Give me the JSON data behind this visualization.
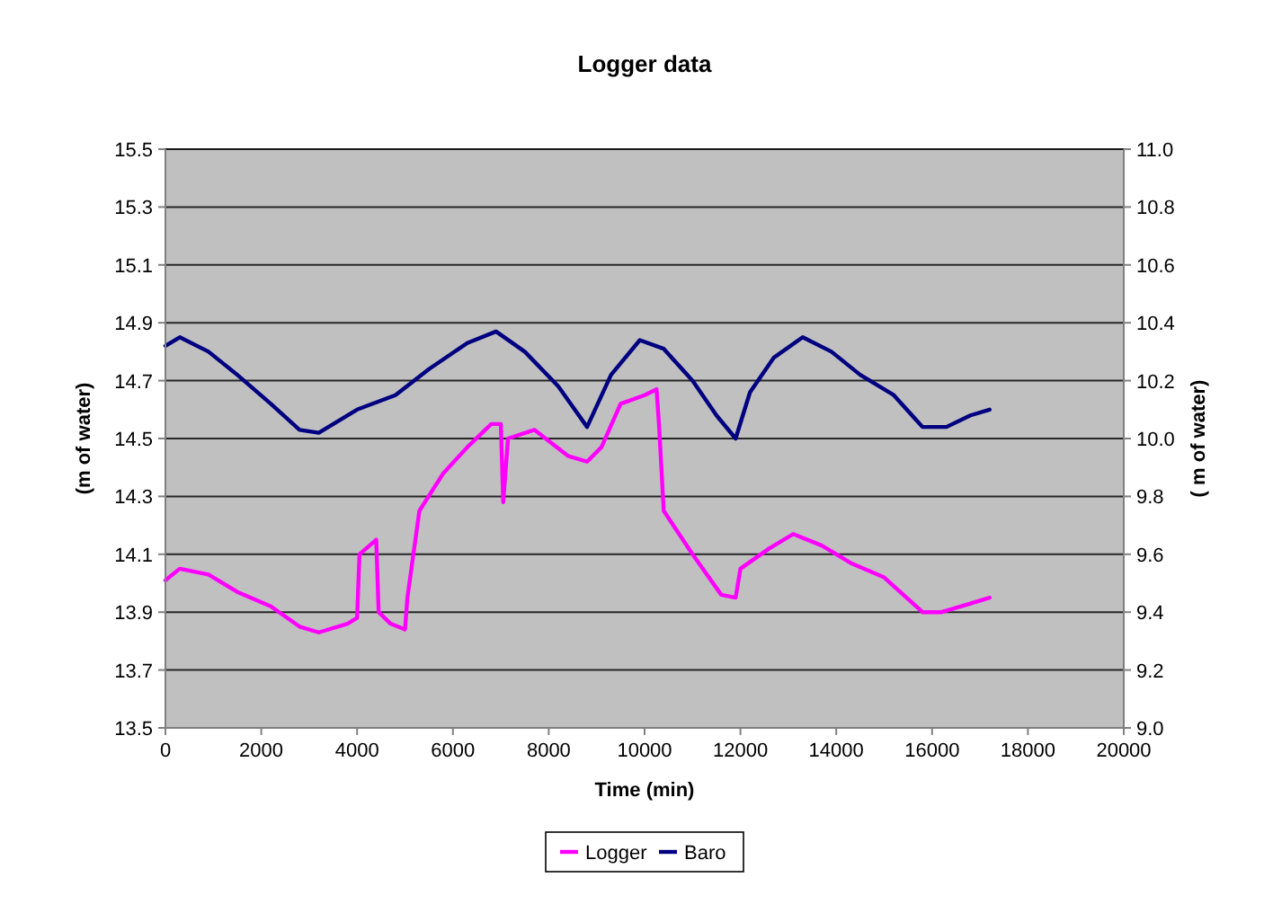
{
  "chart_data": {
    "type": "line",
    "title": "Logger data",
    "xlabel": "Time (min)",
    "ylabel": "(m of water)",
    "y2label": "( m of water)",
    "xlim": [
      0,
      20000
    ],
    "xticks": [
      0,
      2000,
      4000,
      6000,
      8000,
      10000,
      12000,
      14000,
      16000,
      18000,
      20000
    ],
    "ylim": [
      13.5,
      15.5
    ],
    "yticks": [
      13.5,
      13.7,
      13.9,
      14.1,
      14.3,
      14.5,
      14.7,
      14.9,
      15.1,
      15.3,
      15.5
    ],
    "y2lim": [
      9.0,
      11.0
    ],
    "y2ticks": [
      {
        "value": 9.0,
        "label": "9.0"
      },
      9.2,
      9.4,
      9.6,
      9.8,
      {
        "value": 10.0,
        "label": "10.0"
      },
      10.2,
      10.4,
      10.6,
      10.8,
      {
        "value": 11.0,
        "label": "11.0"
      }
    ],
    "grid": "y",
    "legend": "bottom",
    "marker": "none",
    "line_style": "solid",
    "series": [
      {
        "name": "Logger",
        "color": "#ff00ff",
        "x": [
          0,
          300,
          900,
          1500,
          2200,
          2800,
          3200,
          3800,
          4000,
          4050,
          4400,
          4450,
          4700,
          5000,
          5050,
          5300,
          5800,
          6300,
          6800,
          7000,
          7050,
          7150,
          7700,
          8400,
          8800,
          9100,
          9500,
          10000,
          10250,
          10300,
          10400,
          11000,
          11600,
          11900,
          12000,
          12600,
          13100,
          13700,
          14300,
          15000,
          15800,
          16200,
          16800,
          17200
        ],
        "values": [
          14.01,
          14.05,
          14.03,
          13.97,
          13.92,
          13.85,
          13.83,
          13.86,
          13.88,
          14.1,
          14.15,
          13.9,
          13.86,
          13.84,
          13.95,
          14.25,
          14.38,
          14.47,
          14.55,
          14.55,
          14.28,
          14.5,
          14.53,
          14.44,
          14.42,
          14.47,
          14.62,
          14.65,
          14.67,
          14.55,
          14.25,
          14.1,
          13.96,
          13.95,
          14.05,
          14.12,
          14.17,
          14.13,
          14.07,
          14.02,
          13.9,
          13.9,
          13.93,
          13.95
        ]
      },
      {
        "name": "Baro",
        "color": "#000080",
        "axis": "y2",
        "x": [
          0,
          300,
          900,
          1500,
          2200,
          2800,
          3200,
          4000,
          4800,
          5500,
          6300,
          6900,
          7500,
          8200,
          8800,
          9300,
          9900,
          10400,
          11000,
          11500,
          11900,
          12200,
          12700,
          13300,
          13900,
          14500,
          15200,
          15800,
          16300,
          16800,
          17200
        ],
        "values": [
          10.32,
          10.35,
          10.3,
          10.22,
          10.12,
          10.03,
          10.02,
          10.1,
          10.15,
          10.24,
          10.33,
          10.37,
          10.3,
          10.18,
          10.04,
          10.22,
          10.34,
          10.31,
          10.2,
          10.08,
          10.0,
          10.16,
          10.28,
          10.35,
          10.3,
          10.22,
          10.15,
          10.04,
          10.04,
          10.08,
          10.1
        ]
      }
    ]
  }
}
